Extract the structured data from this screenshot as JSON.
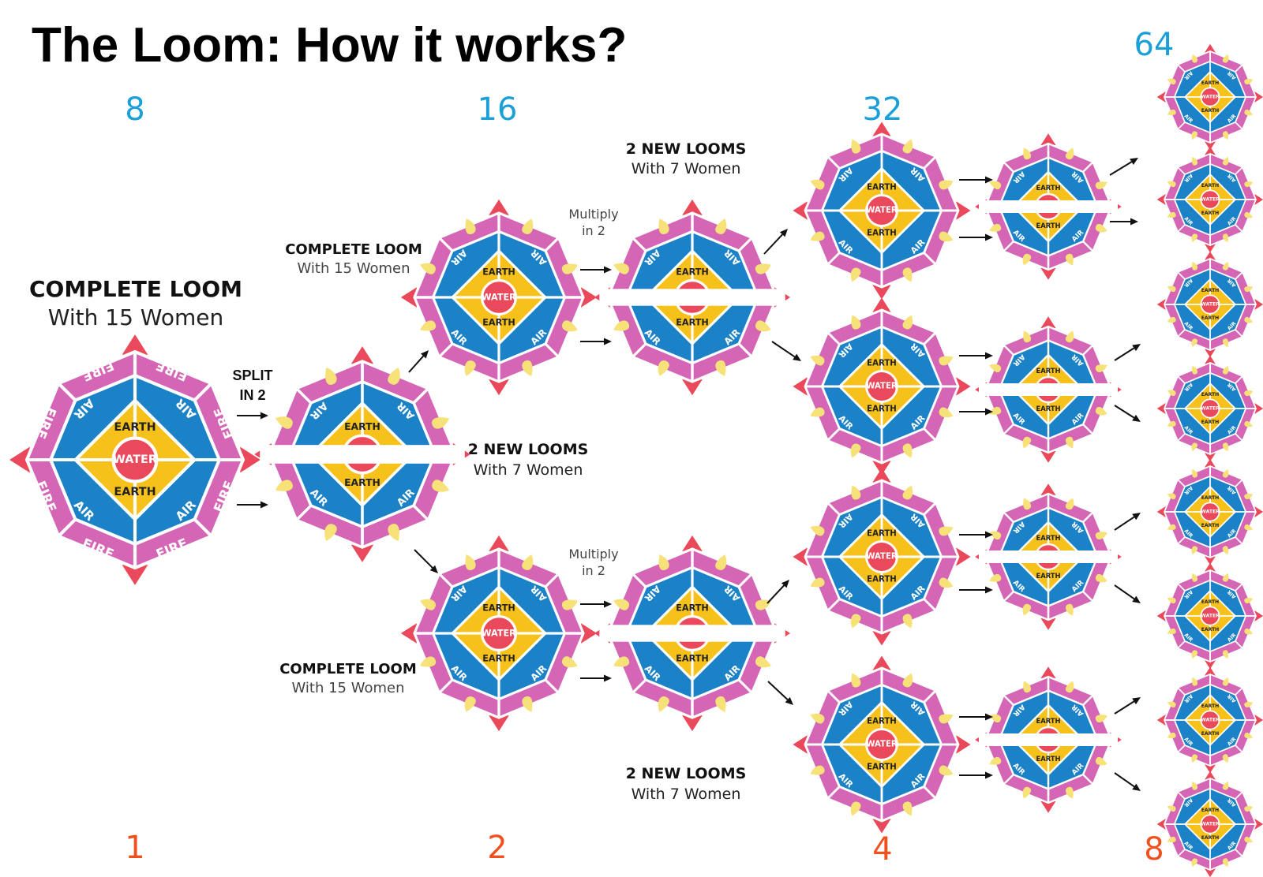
{
  "title": "The Loom: How it works?",
  "colors": {
    "fire": "#d565b5",
    "air": "#1b82c7",
    "earth": "#f7c11c",
    "water": "#e9495a",
    "pointer": "#e9495a",
    "flame": "#f7e27a",
    "count_top": "#1a9fd8",
    "count_bottom": "#f0501e"
  },
  "loom_text": {
    "fire": "FIRE",
    "air": "AIR",
    "earth": "EARTH",
    "water": "WATER"
  },
  "counts_top": [
    "8",
    "16",
    "32",
    "64"
  ],
  "counts_bottom": [
    "1",
    "2",
    "4",
    "8"
  ],
  "labels": {
    "main": {
      "heading": "COMPLETE LOOM",
      "sub": "With 15 Women"
    },
    "split": {
      "line1": "SPLIT",
      "line2": "IN 2"
    },
    "complete_top": {
      "heading": "COMPLETE LOOM",
      "sub": "With 15 Women"
    },
    "complete_bottom": {
      "heading": "COMPLETE LOOM",
      "sub": "With 15 Women"
    },
    "new_mid": {
      "heading": "2 NEW LOOMS",
      "sub": "With 7 Women"
    },
    "new_top": {
      "heading": "2 NEW LOOMS",
      "sub": "With 7 Women"
    },
    "new_bottom": {
      "heading": "2 NEW LOOMS",
      "sub": "With 7 Women"
    },
    "multiply_top": {
      "line1": "Multiply",
      "line2": "in 2"
    },
    "multiply_bottom": {
      "line1": "Multiply",
      "line2": "in 2"
    }
  },
  "stages": [
    {
      "count_top": "8",
      "count_bottom": "1",
      "looms": 1
    },
    {
      "count_top": "16",
      "count_bottom": "2",
      "looms": 2
    },
    {
      "count_top": "32",
      "count_bottom": "4",
      "looms": 4
    },
    {
      "count_top": "64",
      "count_bottom": "8",
      "looms": 8
    }
  ]
}
